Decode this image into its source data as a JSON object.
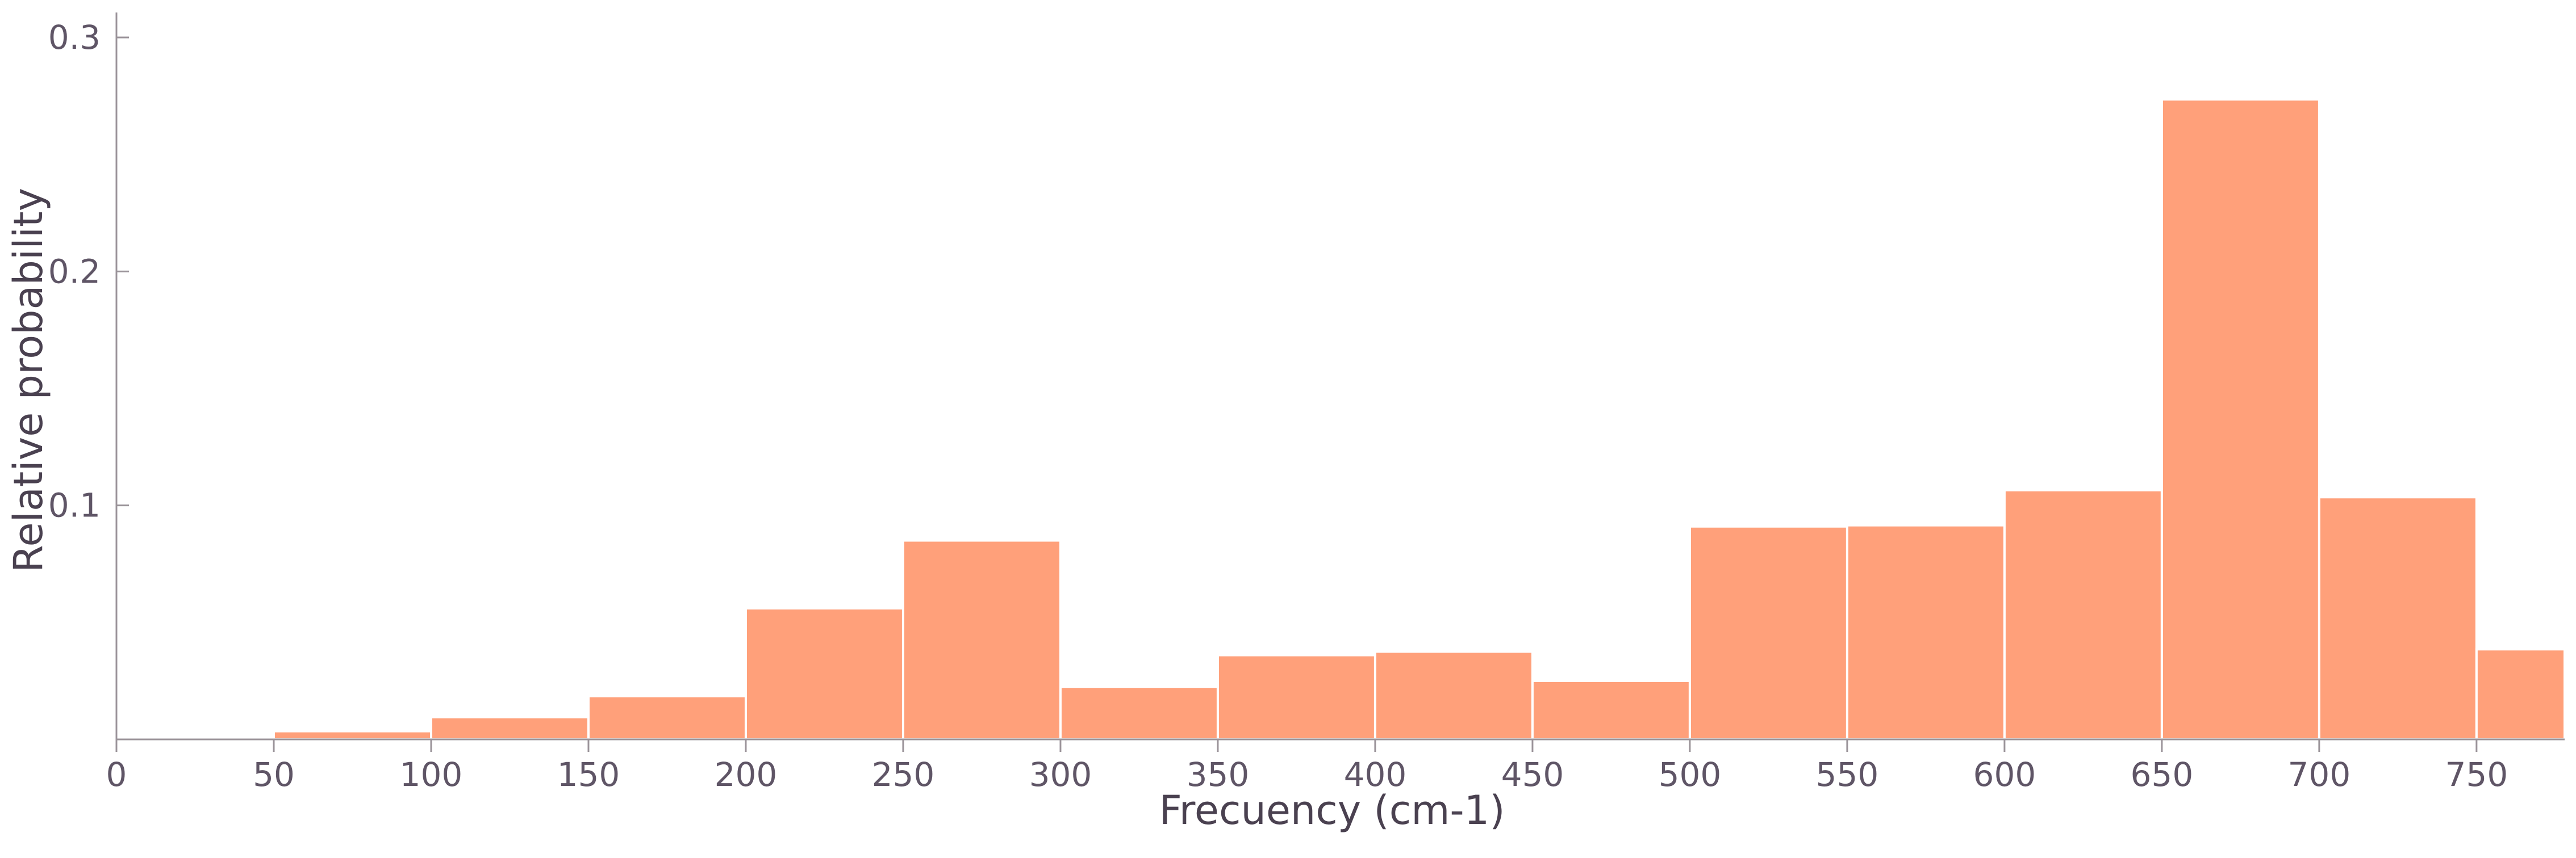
{
  "chart_data": {
    "type": "bar",
    "title": "",
    "xlabel": "Frecuency (cm-1)",
    "ylabel": "Relative probability",
    "xlim": [
      0,
      778
    ],
    "ylim": [
      0,
      0.3
    ],
    "x_ticks": [
      "0",
      "50",
      "100",
      "150",
      "200",
      "250",
      "300",
      "350",
      "400",
      "450",
      "500",
      "550",
      "600",
      "650",
      "700",
      "750"
    ],
    "y_ticks": [
      "0.1",
      "0.2",
      "0.3"
    ],
    "grid": false,
    "bar_color": "#ffa07a",
    "bins": [
      {
        "start": 0,
        "end": 50,
        "value": 0.0005
      },
      {
        "start": 50,
        "end": 100,
        "value": 0.0035
      },
      {
        "start": 100,
        "end": 150,
        "value": 0.0095
      },
      {
        "start": 150,
        "end": 200,
        "value": 0.0185
      },
      {
        "start": 200,
        "end": 250,
        "value": 0.056
      },
      {
        "start": 250,
        "end": 300,
        "value": 0.085
      },
      {
        "start": 300,
        "end": 350,
        "value": 0.0225
      },
      {
        "start": 350,
        "end": 400,
        "value": 0.036
      },
      {
        "start": 400,
        "end": 450,
        "value": 0.0375
      },
      {
        "start": 450,
        "end": 500,
        "value": 0.025
      },
      {
        "start": 500,
        "end": 550,
        "value": 0.091
      },
      {
        "start": 550,
        "end": 600,
        "value": 0.0915
      },
      {
        "start": 600,
        "end": 650,
        "value": 0.1065
      },
      {
        "start": 650,
        "end": 700,
        "value": 0.2735
      },
      {
        "start": 700,
        "end": 750,
        "value": 0.1035
      },
      {
        "start": 750,
        "end": 778,
        "value": 0.0385
      }
    ]
  }
}
